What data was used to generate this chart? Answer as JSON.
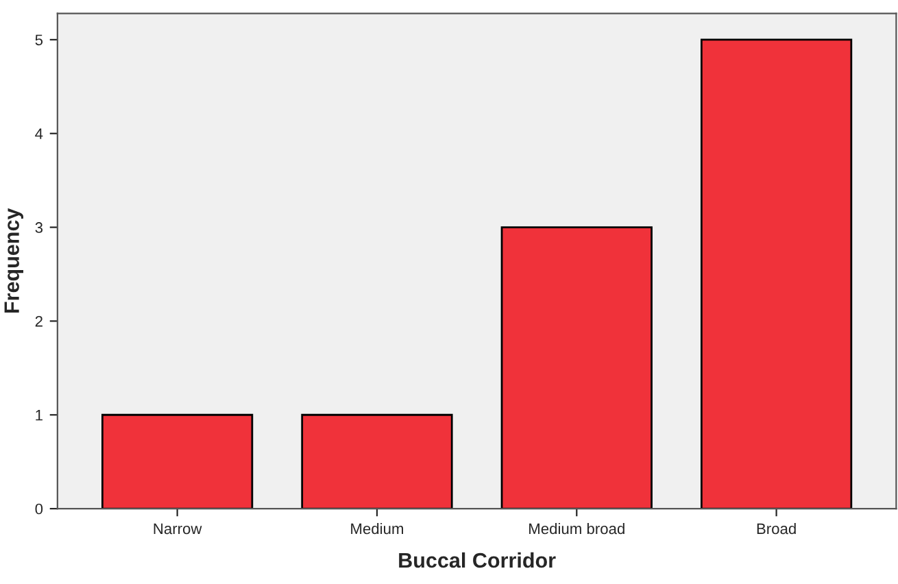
{
  "chart_data": {
    "type": "bar",
    "xlabel": "Buccal Corridor",
    "ylabel": "Frequency",
    "categories": [
      "Narrow",
      "Medium",
      "Medium broad",
      "Broad"
    ],
    "values": [
      1,
      1,
      3,
      5
    ],
    "color": "#f0323a",
    "ylim": [
      0,
      5.28
    ],
    "yticks": [
      0,
      1,
      2,
      3,
      4,
      5
    ],
    "grid": false
  }
}
